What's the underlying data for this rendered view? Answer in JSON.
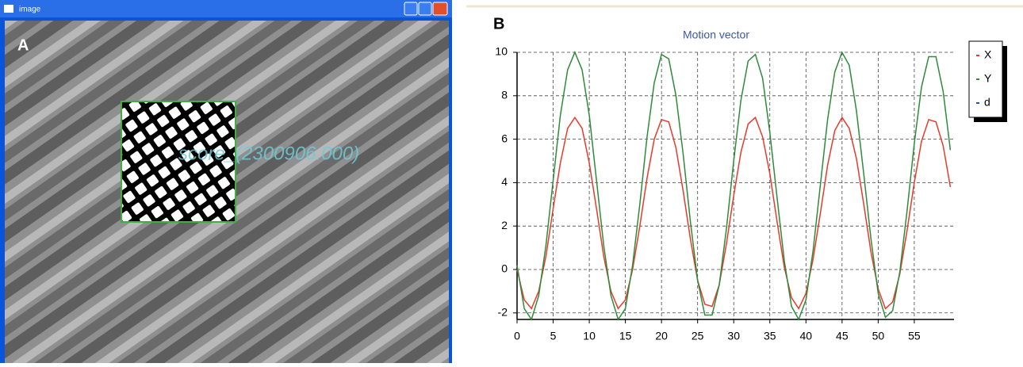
{
  "window": {
    "title": "image",
    "overlay": "score_(2300906.000)"
  },
  "panel_labels": [
    "A",
    "B"
  ],
  "chart_data": {
    "type": "line",
    "title": "Motion vector",
    "x": [
      0,
      1,
      2,
      3,
      4,
      5,
      6,
      7,
      8,
      9,
      10,
      11,
      12,
      13,
      14,
      15,
      16,
      17,
      18,
      19,
      20,
      21,
      22,
      23,
      24,
      25,
      26,
      27,
      28,
      29,
      30,
      31,
      32,
      33,
      34,
      35,
      36,
      37,
      38,
      39,
      40,
      41,
      42,
      43,
      44,
      45,
      46,
      47,
      48,
      49,
      50,
      51,
      52,
      53,
      54,
      55,
      56,
      57,
      58,
      59,
      60
    ],
    "series": [
      {
        "name": "X",
        "color": "#e8392a",
        "values": [
          0,
          -1.4,
          -1.8,
          -1,
          0.6,
          2.8,
          4.9,
          6.5,
          7,
          6.5,
          4.9,
          2.8,
          0.6,
          -1,
          -1.8,
          -1.4,
          0,
          2,
          4.2,
          6,
          6.9,
          6.8,
          5.6,
          3.6,
          1.4,
          -0.5,
          -1.6,
          -1.7,
          -0.7,
          1.2,
          3.4,
          5.4,
          6.7,
          7,
          6.1,
          4.4,
          2.2,
          0.1,
          -1.3,
          -1.8,
          -1.1,
          0.5,
          2.6,
          4.8,
          6.4,
          7,
          6.5,
          5.1,
          3,
          0.8,
          -0.9,
          -1.8,
          -1.5,
          -0.2,
          1.8,
          4,
          5.9,
          6.9,
          6.8,
          5.7,
          3.8
        ]
      },
      {
        "name": "Y",
        "color": "#2e8b3a",
        "values": [
          0.2,
          -1.8,
          -2.3,
          -1.2,
          1.1,
          4.1,
          7.1,
          9.2,
          10,
          9.2,
          7.1,
          4.1,
          1.1,
          -1.2,
          -2.3,
          -1.8,
          0.2,
          3,
          6.1,
          8.6,
          9.9,
          9.7,
          8,
          5.3,
          2.2,
          -0.5,
          -2.1,
          -2.1,
          -0.7,
          1.9,
          5,
          7.8,
          9.6,
          9.9,
          8.8,
          6.3,
          3.3,
          0.4,
          -1.7,
          -2.3,
          -1.4,
          0.9,
          3.9,
          6.9,
          9.1,
          10,
          9.4,
          7.3,
          4.4,
          1.4,
          -1.1,
          -2.2,
          -1.9,
          -0.1,
          2.7,
          5.8,
          8.4,
          9.8,
          9.8,
          8.2,
          5.5
        ]
      },
      {
        "name": "d",
        "color": "#2a4fd0",
        "values": [
          null,
          null,
          null,
          null,
          null,
          null,
          null,
          null,
          null,
          null,
          null,
          null,
          null,
          null,
          null,
          null,
          null,
          null,
          null,
          null,
          null,
          null,
          null,
          null,
          null,
          null,
          null,
          null,
          null,
          null,
          null,
          null,
          null,
          null,
          null,
          null,
          null,
          null,
          null,
          null,
          null,
          null,
          null,
          null,
          null,
          null,
          null,
          null,
          null,
          null,
          null,
          null,
          null,
          null,
          null,
          null,
          null,
          null,
          null,
          null,
          null
        ]
      }
    ],
    "xlim": [
      0,
      60.5
    ],
    "xticks": [
      0,
      5,
      10,
      15,
      20,
      25,
      30,
      35,
      40,
      45,
      50,
      55
    ],
    "ylim": [
      -2.3,
      10
    ],
    "yticks": [
      -2,
      0,
      2,
      4,
      6,
      8,
      10
    ],
    "grid": true,
    "legend": "right"
  }
}
